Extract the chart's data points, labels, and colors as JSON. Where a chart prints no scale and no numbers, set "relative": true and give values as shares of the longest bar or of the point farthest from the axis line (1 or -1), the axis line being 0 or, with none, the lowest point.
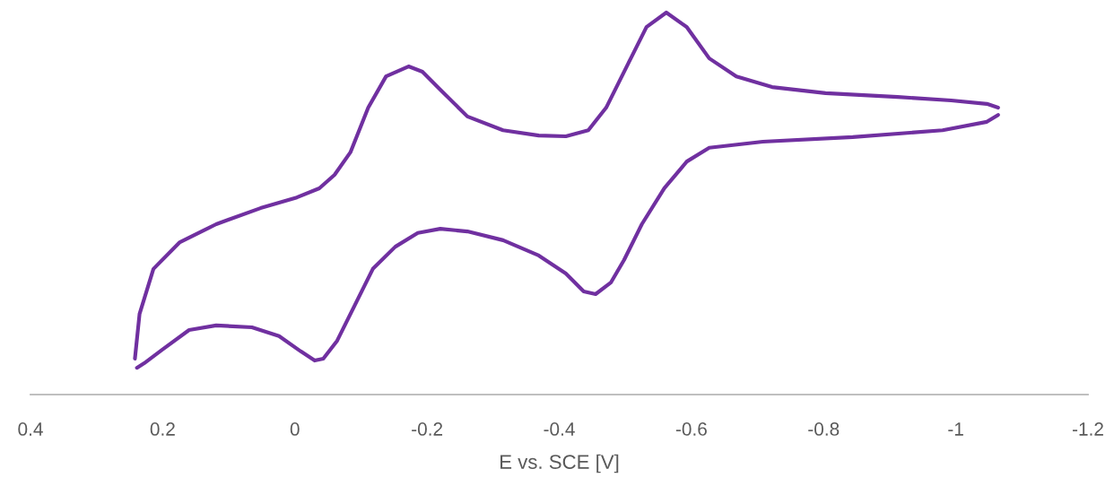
{
  "chart_data": {
    "type": "line",
    "relative": true,
    "xlabel": "E vs. SCE [V]",
    "xlim": [
      0.4,
      -1.2
    ],
    "xticks": [
      0.4,
      0.2,
      0,
      -0.2,
      -0.4,
      -0.6,
      -0.8,
      -1,
      -1.2
    ],
    "grid": false,
    "legend": false,
    "marker": "none",
    "line_style": "solid",
    "series": [
      {
        "color": "#7030a0",
        "x": [
          0.242,
          0.235,
          0.214,
          0.174,
          0.119,
          0.052,
          -0.003,
          -0.037,
          -0.06,
          -0.084,
          -0.111,
          -0.138,
          -0.172,
          -0.193,
          -0.22,
          -0.261,
          -0.315,
          -0.369,
          -0.41,
          -0.444,
          -0.471,
          -0.505,
          -0.532,
          -0.562,
          -0.593,
          -0.627,
          -0.668,
          -0.722,
          -0.803,
          -0.912,
          -0.993,
          -1.047,
          -1.064
        ],
        "values": [
          0.094,
          0.211,
          0.329,
          0.399,
          0.446,
          0.488,
          0.516,
          0.54,
          0.575,
          0.634,
          0.751,
          0.833,
          0.859,
          0.845,
          0.798,
          0.728,
          0.692,
          0.678,
          0.676,
          0.692,
          0.751,
          0.869,
          0.962,
          1.0,
          0.962,
          0.88,
          0.833,
          0.805,
          0.789,
          0.779,
          0.77,
          0.761,
          0.751
        ]
      },
      {
        "color": "#7030a0",
        "x": [
          -1.064,
          -1.047,
          -0.98,
          -0.844,
          -0.708,
          -0.627,
          -0.593,
          -0.559,
          -0.525,
          -0.498,
          -0.478,
          -0.455,
          -0.437,
          -0.41,
          -0.369,
          -0.315,
          -0.261,
          -0.22,
          -0.186,
          -0.152,
          -0.118,
          -0.091,
          -0.064,
          -0.043,
          -0.03,
          -0.009,
          0.024,
          0.065,
          0.119,
          0.16,
          0.201,
          0.228,
          0.239
        ],
        "values": [
          0.732,
          0.714,
          0.692,
          0.674,
          0.662,
          0.646,
          0.61,
          0.54,
          0.446,
          0.352,
          0.293,
          0.263,
          0.27,
          0.317,
          0.364,
          0.404,
          0.427,
          0.434,
          0.423,
          0.387,
          0.329,
          0.235,
          0.141,
          0.094,
          0.089,
          0.113,
          0.153,
          0.176,
          0.181,
          0.169,
          0.117,
          0.082,
          0.07
        ]
      }
    ]
  }
}
